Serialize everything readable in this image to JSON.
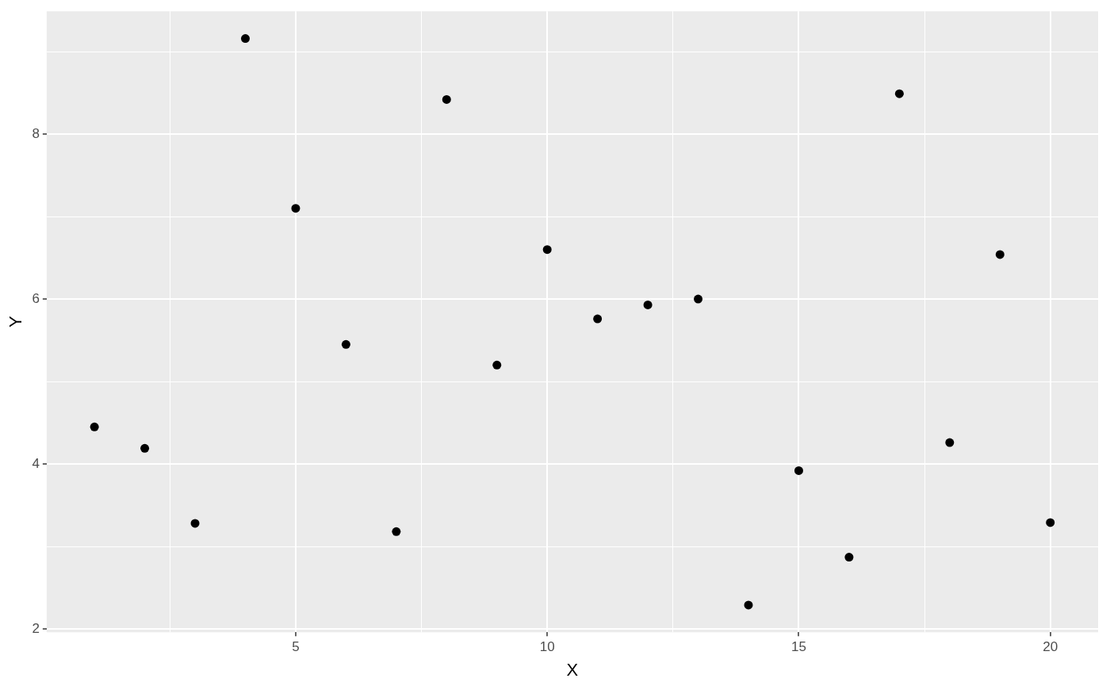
{
  "chart_data": {
    "type": "scatter",
    "xlabel": "X",
    "ylabel": "Y",
    "x": [
      1,
      2,
      3,
      4,
      5,
      6,
      7,
      8,
      9,
      10,
      11,
      12,
      13,
      14,
      15,
      16,
      17,
      18,
      19,
      20
    ],
    "series": [
      {
        "color": "#000000",
        "values": [
          4.45,
          4.19,
          3.28,
          9.16,
          7.1,
          5.45,
          3.18,
          8.42,
          5.2,
          6.6,
          5.76,
          5.93,
          6.0,
          2.29,
          3.92,
          2.87,
          8.49,
          4.26,
          6.54,
          3.29
        ]
      }
    ],
    "xlim": [
      0.05,
      20.95
    ],
    "ylim": [
      1.96,
      9.49
    ],
    "xticks": [
      {
        "value": 2.5,
        "label": null
      },
      5,
      {
        "value": 7.5,
        "label": null
      },
      10,
      {
        "value": 12.5,
        "label": null
      },
      15,
      {
        "value": 17.5,
        "label": null
      },
      20
    ],
    "yticks": [
      2,
      {
        "value": 3,
        "label": null
      },
      4,
      {
        "value": 5,
        "label": null
      },
      6,
      {
        "value": 7,
        "label": null
      },
      8,
      {
        "value": 9,
        "label": null
      }
    ],
    "grid": true,
    "legend": false,
    "marker": "circle"
  }
}
